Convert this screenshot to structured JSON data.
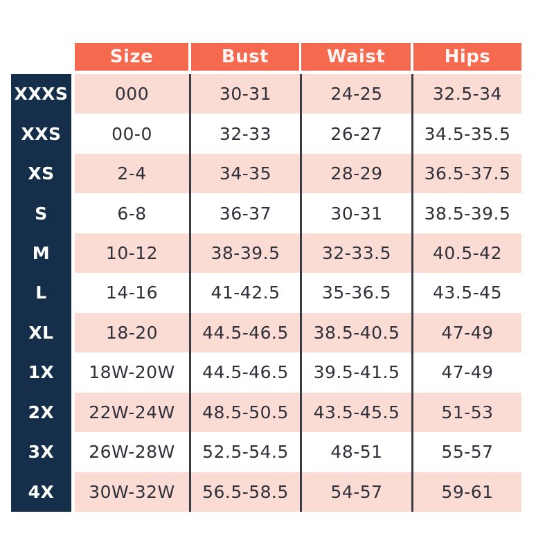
{
  "chart_data": {
    "type": "table",
    "columns": [
      "Size",
      "Bust",
      "Waist",
      "Hips"
    ],
    "row_labels": [
      "XXXS",
      "XXS",
      "XS",
      "S",
      "M",
      "L",
      "XL",
      "1X",
      "2X",
      "3X",
      "4X"
    ],
    "rows": [
      [
        "000",
        "30-31",
        "24-25",
        "32.5-34"
      ],
      [
        "00-0",
        "32-33",
        "26-27",
        "34.5-35.5"
      ],
      [
        "2-4",
        "34-35",
        "28-29",
        "36.5-37.5"
      ],
      [
        "6-8",
        "36-37",
        "30-31",
        "38.5-39.5"
      ],
      [
        "10-12",
        "38-39.5",
        "32-33.5",
        "40.5-42"
      ],
      [
        "14-16",
        "41-42.5",
        "35-36.5",
        "43.5-45"
      ],
      [
        "18-20",
        "44.5-46.5",
        "38.5-40.5",
        "47-49"
      ],
      [
        "18W-20W",
        "44.5-46.5",
        "39.5-41.5",
        "47-49"
      ],
      [
        "22W-24W",
        "48.5-50.5",
        "43.5-45.5",
        "51-53"
      ],
      [
        "26W-28W",
        "52.5-54.5",
        "48-51",
        "55-57"
      ],
      [
        "30W-32W",
        "56.5-58.5",
        "54-57",
        "59-61"
      ]
    ],
    "layout_hints": {
      "stripe_pattern": "odd rows pink, even rows white",
      "label_column_position": "left",
      "header_position": "top"
    },
    "colors": {
      "header_bg": "#F5694E",
      "header_text": "#FFF5F2",
      "label_column_bg": "#152F4A",
      "label_column_text": "#FFFFFF",
      "row_stripe_pink": "#FBDCD4",
      "row_stripe_white": "#FFFFFF",
      "cell_text": "#30303A",
      "column_divider": "#3A3A44"
    }
  }
}
